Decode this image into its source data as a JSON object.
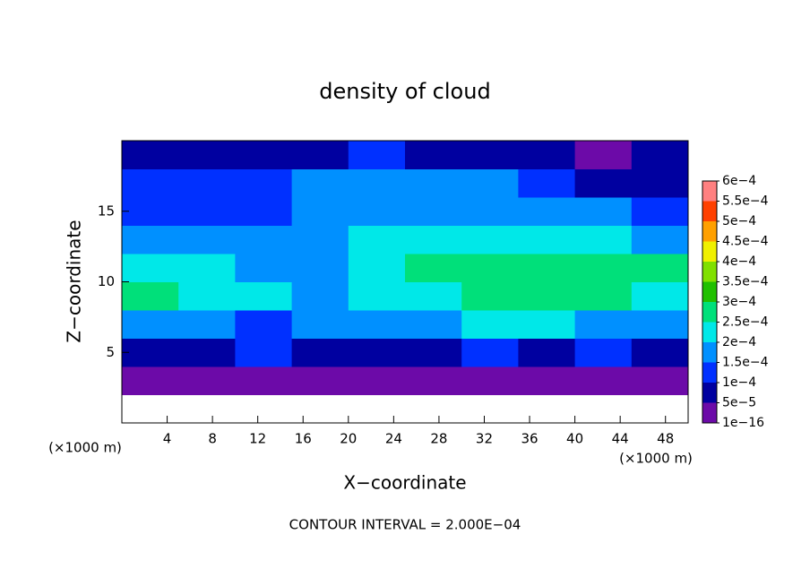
{
  "chart_data": {
    "type": "heatmap",
    "title": "density of cloud",
    "xlabel": "X−coordinate",
    "ylabel": "Z−coordinate",
    "x_unit": "(×1000 m)",
    "y_unit": "(×1000 m)",
    "footer": "CONTOUR INTERVAL = 2.000E−04",
    "xlim": [
      0,
      50
    ],
    "ylim": [
      0,
      20
    ],
    "xticks": [
      4,
      8,
      12,
      16,
      20,
      24,
      28,
      32,
      36,
      40,
      44,
      48
    ],
    "yticks": [
      5,
      10,
      15
    ],
    "x": [
      2.5,
      7.5,
      12.5,
      17.5,
      22.5,
      27.5,
      32.5,
      37.5,
      42.5,
      47.5
    ],
    "y": [
      1,
      3,
      5,
      7,
      9,
      11,
      13,
      15,
      17,
      19
    ],
    "z": [
      [
        null,
        null,
        null,
        null,
        null,
        null,
        null,
        null,
        null,
        null
      ],
      [
        4e-05,
        4e-05,
        4e-05,
        4e-05,
        4e-05,
        4e-05,
        4e-05,
        4e-05,
        4e-05,
        4e-05
      ],
      [
        8e-05,
        9e-05,
        0.0001,
        7e-05,
        8e-05,
        9e-05,
        0.0001,
        9e-05,
        0.0001,
        9e-05
      ],
      [
        0.00019,
        0.00016,
        0.00014,
        0.00017,
        0.00018,
        0.00017,
        0.0002,
        0.0002,
        0.00018,
        0.00016
      ],
      [
        0.00027,
        0.00024,
        0.00021,
        0.00019,
        0.00021,
        0.00023,
        0.00025,
        0.00026,
        0.00026,
        0.00024
      ],
      [
        0.00024,
        0.00021,
        0.00018,
        0.00018,
        0.00022,
        0.00025,
        0.00025,
        0.00026,
        0.00027,
        0.00025
      ],
      [
        0.00016,
        0.00016,
        0.00015,
        0.00017,
        0.0002,
        0.00022,
        0.00023,
        0.00024,
        0.00023,
        0.00019
      ],
      [
        0.00012,
        0.0001,
        0.00012,
        0.00015,
        0.00016,
        0.00018,
        0.00019,
        0.00018,
        0.00016,
        0.00012
      ],
      [
        0.0001,
        0.00011,
        0.00014,
        0.00015,
        0.00016,
        0.00016,
        0.00015,
        0.00012,
        9e-05,
        7e-05
      ],
      [
        7e-05,
        8e-05,
        9e-05,
        9e-05,
        0.0001,
        9e-05,
        8e-05,
        6e-05,
        4e-05,
        6e-05
      ]
    ],
    "colorbar_ticks": [
      {
        "value": 1e-16,
        "label": "1e−16"
      },
      {
        "value": 5e-05,
        "label": "5e−5"
      },
      {
        "value": 0.0001,
        "label": "1e−4"
      },
      {
        "value": 0.00015,
        "label": "1.5e−4"
      },
      {
        "value": 0.0002,
        "label": "2e−4"
      },
      {
        "value": 0.00025,
        "label": "2.5e−4"
      },
      {
        "value": 0.0003,
        "label": "3e−4"
      },
      {
        "value": 0.00035,
        "label": "3.5e−4"
      },
      {
        "value": 0.0004,
        "label": "4e−4"
      },
      {
        "value": 0.00045,
        "label": "4.5e−4"
      },
      {
        "value": 0.0005,
        "label": "5e−4"
      },
      {
        "value": 0.00055,
        "label": "5.5e−4"
      },
      {
        "value": 0.0006,
        "label": "6e−4"
      }
    ],
    "colors": [
      "#6c0aa8",
      "#0000a0",
      "#0030ff",
      "#0090ff",
      "#00e8e8",
      "#00e07a",
      "#20c000",
      "#80e000",
      "#f0f000",
      "#ffa000",
      "#ff4000",
      "#ff8080"
    ]
  }
}
